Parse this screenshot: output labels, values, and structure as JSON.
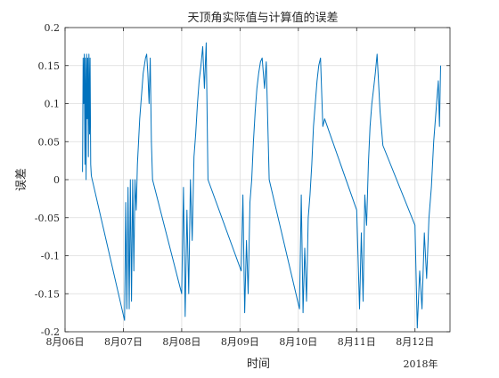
{
  "chart_data": {
    "type": "line",
    "title": "天顶角实际值与计算值的误差",
    "xlabel": "时间",
    "ylabel": "误差",
    "year_label": "2018年",
    "ylim": [
      -0.2,
      0.2
    ],
    "xlim": [
      6.0,
      12.6
    ],
    "yticks": [
      -0.2,
      -0.15,
      -0.1,
      -0.05,
      0,
      0.05,
      0.1,
      0.15,
      0.2
    ],
    "ytick_labels": [
      "-0.2",
      "-0.15",
      "-0.1",
      "-0.05",
      "0",
      "0.05",
      "0.1",
      "0.15",
      "0.2"
    ],
    "xticks": [
      6,
      7,
      8,
      9,
      10,
      11,
      12
    ],
    "xtick_labels": [
      "8月06日",
      "8月07日",
      "8月08日",
      "8月09日",
      "8月10日",
      "8月11日",
      "8月12日"
    ],
    "grid": true,
    "line_color": "#0072BD",
    "series": [
      {
        "x": [
          6.3,
          6.31,
          6.32,
          6.33,
          6.34,
          6.35,
          6.36,
          6.37,
          6.38,
          6.39,
          6.4,
          6.41,
          6.42,
          6.43,
          6.44,
          6.45,
          7.02,
          7.04,
          7.06,
          7.08,
          7.1,
          7.12,
          7.14,
          7.16,
          7.18,
          7.2,
          7.22,
          7.24,
          7.26,
          7.28,
          7.3,
          7.32,
          7.34,
          7.36,
          7.38,
          7.4,
          7.42,
          7.44,
          7.46,
          7.48,
          7.5,
          8.0,
          8.03,
          8.06,
          8.09,
          8.12,
          8.15,
          8.18,
          8.21,
          8.24,
          8.27,
          8.3,
          8.33,
          8.36,
          8.39,
          8.42,
          8.45,
          9.02,
          9.05,
          9.08,
          9.11,
          9.14,
          9.17,
          9.2,
          9.23,
          9.26,
          9.29,
          9.32,
          9.35,
          9.38,
          9.42,
          9.45,
          9.5,
          10.02,
          10.05,
          10.08,
          10.11,
          10.14,
          10.17,
          10.2,
          10.23,
          10.26,
          10.29,
          10.32,
          10.35,
          10.38,
          10.42,
          10.45,
          11.0,
          11.05,
          11.08,
          11.11,
          11.14,
          11.17,
          11.2,
          11.23,
          11.26,
          11.29,
          11.32,
          11.35,
          11.4,
          11.45,
          12.0,
          12.04,
          12.08,
          12.12,
          12.16,
          12.2,
          12.24,
          12.28,
          12.32,
          12.36,
          12.4,
          12.42,
          12.44
        ],
        "y": [
          0.01,
          0.16,
          0.1,
          0.165,
          0.02,
          0.16,
          0.0,
          0.165,
          0.08,
          0.16,
          0.03,
          0.165,
          0.06,
          0.16,
          0.02,
          0.005,
          -0.185,
          -0.03,
          -0.17,
          -0.01,
          -0.17,
          0.0,
          -0.16,
          0.0,
          -0.12,
          0.0,
          -0.04,
          0.02,
          0.05,
          0.08,
          0.1,
          0.12,
          0.14,
          0.15,
          0.16,
          0.165,
          0.14,
          0.1,
          0.16,
          0.05,
          0.0,
          -0.15,
          -0.01,
          -0.18,
          -0.04,
          -0.15,
          0.0,
          -0.08,
          0.03,
          0.06,
          0.1,
          0.13,
          0.15,
          0.175,
          0.12,
          0.18,
          0.0,
          -0.12,
          -0.02,
          -0.175,
          -0.08,
          -0.15,
          -0.03,
          0.0,
          0.05,
          0.09,
          0.12,
          0.14,
          0.155,
          0.16,
          0.12,
          0.155,
          0.0,
          -0.17,
          -0.02,
          -0.175,
          -0.09,
          -0.16,
          -0.05,
          -0.02,
          0.02,
          0.07,
          0.1,
          0.13,
          0.15,
          0.16,
          0.07,
          0.08,
          -0.04,
          -0.17,
          -0.07,
          -0.16,
          -0.02,
          -0.06,
          0.02,
          0.07,
          0.1,
          0.12,
          0.14,
          0.165,
          0.09,
          0.045,
          -0.06,
          -0.195,
          -0.12,
          -0.17,
          -0.07,
          -0.13,
          -0.05,
          -0.01,
          0.05,
          0.09,
          0.13,
          0.07,
          0.15
        ]
      }
    ]
  }
}
